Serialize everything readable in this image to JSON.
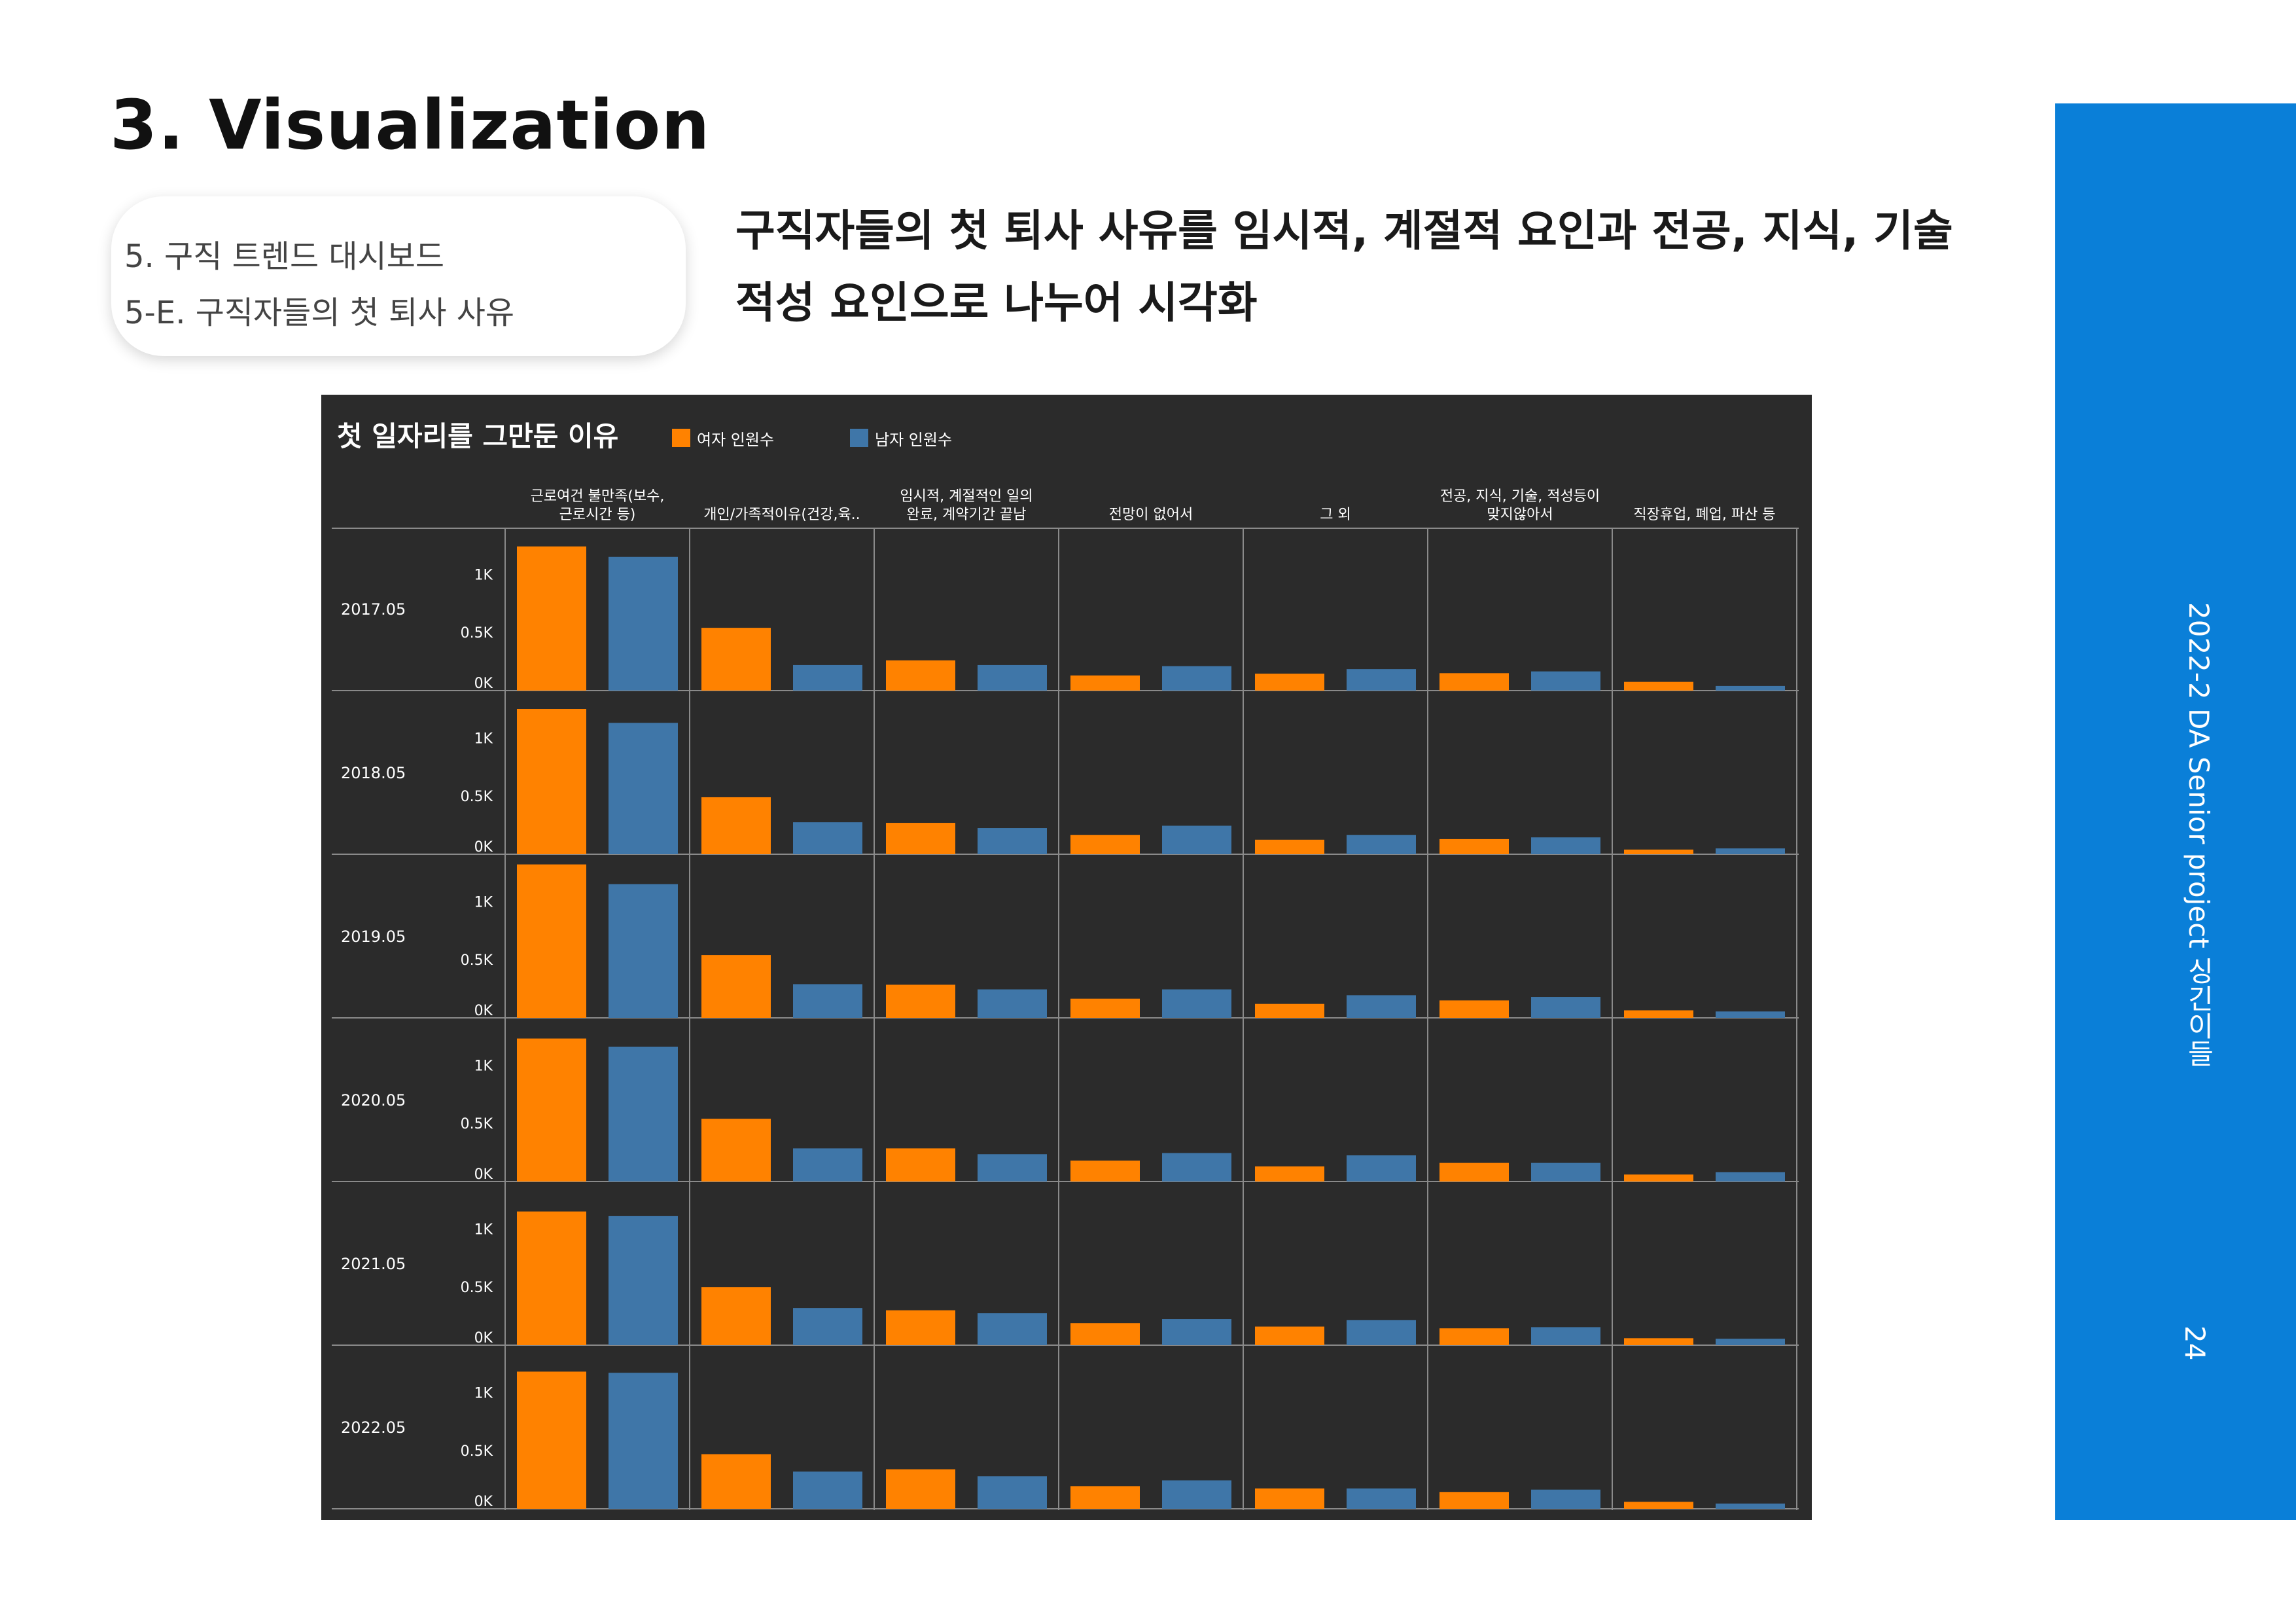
{
  "slide": {
    "title": "3. Visualization",
    "breadcrumb": [
      "5. 구직 트렌드 대시보드",
      "5-E. 구직자들의 첫 퇴사 사유"
    ],
    "description": "구직자들의 첫 퇴사 사유를 임시적, 계절적 요인과 전공, 지식, 기술 적성 요인으로 나누어 시각화",
    "side_label": "2022-2 DA Senior project 싱긴이들",
    "page_number": "24"
  },
  "colors": {
    "female": "#ff8200",
    "male": "#3f76a8",
    "panel_bg": "#2b2b2b",
    "side_band": "#0a7fd8"
  },
  "chart_data": {
    "type": "bar",
    "title": "첫 일자리를 그만둔 이유",
    "legend_position": "top",
    "series_names": [
      "여자 인원수",
      "남자 인원수"
    ],
    "columns": [
      [
        "근로여건 불만족(보수,",
        "근로시간 등)"
      ],
      [
        "개인/가족적이유(건강,육.."
      ],
      [
        "임시적, 계절적인 일의",
        "완료, 계약기간 끝남"
      ],
      [
        "전망이 없어서"
      ],
      [
        "그 외"
      ],
      [
        "전공, 지식, 기술, 적성등이",
        "맞지않아서"
      ],
      [
        "직장휴업, 폐업, 파산 등"
      ]
    ],
    "rows": [
      "2017.05",
      "2018.05",
      "2019.05",
      "2020.05",
      "2021.05",
      "2022.05"
    ],
    "y_ticks": [
      "1K",
      "0.5K",
      "0K"
    ],
    "ylim": [
      0,
      1250
    ],
    "values": {
      "2017.05": {
        "female": [
          1240,
          540,
          260,
          130,
          145,
          150,
          75
        ],
        "male": [
          1150,
          220,
          220,
          210,
          185,
          165,
          40
        ]
      },
      "2018.05": {
        "female": [
          1250,
          490,
          270,
          165,
          125,
          130,
          40
        ],
        "male": [
          1130,
          275,
          225,
          245,
          165,
          145,
          50
        ]
      },
      "2019.05": {
        "female": [
          1320,
          540,
          285,
          165,
          120,
          150,
          65
        ],
        "male": [
          1150,
          290,
          245,
          245,
          195,
          180,
          55
        ]
      },
      "2020.05": {
        "female": [
          1230,
          540,
          285,
          180,
          130,
          160,
          60
        ],
        "male": [
          1160,
          285,
          235,
          245,
          225,
          160,
          80
        ]
      },
      "2021.05": {
        "female": [
          1150,
          500,
          300,
          190,
          160,
          145,
          60
        ],
        "male": [
          1110,
          320,
          275,
          225,
          215,
          155,
          55
        ]
      },
      "2022.05": {
        "female": [
          1180,
          470,
          340,
          195,
          175,
          145,
          60
        ],
        "male": [
          1170,
          320,
          280,
          245,
          175,
          165,
          45
        ]
      }
    }
  }
}
